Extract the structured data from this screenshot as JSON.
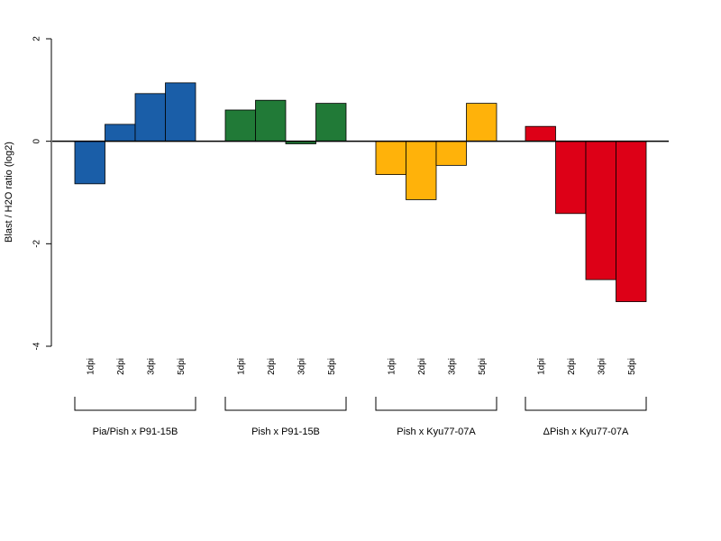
{
  "chart_data": {
    "type": "bar",
    "ylabel": "Blast / H2O ratio (log2)",
    "ylim": [
      -4,
      2
    ],
    "yticks": [
      2,
      0,
      -2,
      -4
    ],
    "grid": false,
    "groups": [
      {
        "name": "Pia/Pish x P91-15B",
        "color": "#1a5ea8",
        "categories": [
          "1dpi",
          "2dpi",
          "3dpi",
          "5dpi"
        ],
        "values": [
          -0.83,
          0.33,
          0.93,
          1.14
        ]
      },
      {
        "name": "Pish x P91-15B",
        "color": "#217a37",
        "categories": [
          "1dpi",
          "2dpi",
          "3dpi",
          "5dpi"
        ],
        "values": [
          0.61,
          0.8,
          -0.05,
          0.74
        ]
      },
      {
        "name": "Pish x Kyu77-07A",
        "color": "#ffb20a",
        "categories": [
          "1dpi",
          "2dpi",
          "3dpi",
          "5dpi"
        ],
        "values": [
          -0.65,
          -1.14,
          -0.47,
          0.74
        ]
      },
      {
        "name": "ΔPish x Kyu77-07A",
        "color": "#dd0017",
        "categories": [
          "1dpi",
          "2dpi",
          "3dpi",
          "5dpi"
        ],
        "values": [
          0.29,
          -1.41,
          -2.7,
          -3.13
        ]
      }
    ]
  }
}
